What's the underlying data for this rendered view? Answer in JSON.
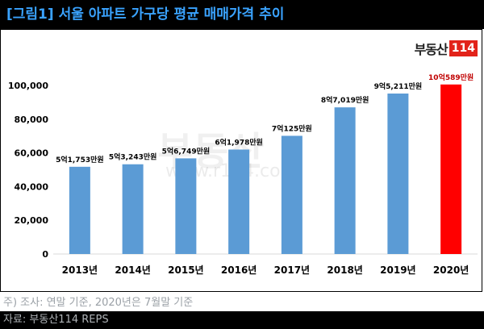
{
  "header": {
    "title": "[그림1] 서울 아파트 가구당 평균 매매가격 추이"
  },
  "logo": {
    "text": "부동산",
    "number": "114"
  },
  "watermark": {
    "text": "부동산",
    "url": "www.r114.com"
  },
  "footer": {
    "note": "주) 조사: 연말 기준, 2020년은 7월말 기준",
    "source": "자료: 부동산114 REPS"
  },
  "colors": {
    "bar": "#5b9bd5",
    "highlight": "#ff0000",
    "highlight_label": "#c00000",
    "title": "#3aa3ff"
  },
  "chart_data": {
    "type": "bar",
    "categories": [
      "2013년",
      "2014년",
      "2015년",
      "2016년",
      "2017년",
      "2018년",
      "2019년",
      "2020년"
    ],
    "values": [
      51753,
      53243,
      56749,
      61978,
      70125,
      87019,
      95211,
      100589
    ],
    "data_labels": [
      "5억1,753만원",
      "5억3,243만원",
      "5억6,749만원",
      "6억1,978만원",
      "7억125만원",
      "8억7,019만원",
      "9억5,211만원",
      "10억589만원"
    ],
    "highlight_index": 7,
    "ylim": [
      0,
      100000
    ],
    "yticks": [
      0,
      20000,
      40000,
      60000,
      80000,
      100000
    ],
    "ytick_labels": [
      "0",
      "20,000",
      "40,000",
      "60,000",
      "80,000",
      "100,000"
    ],
    "grid": false,
    "legend": "none"
  }
}
